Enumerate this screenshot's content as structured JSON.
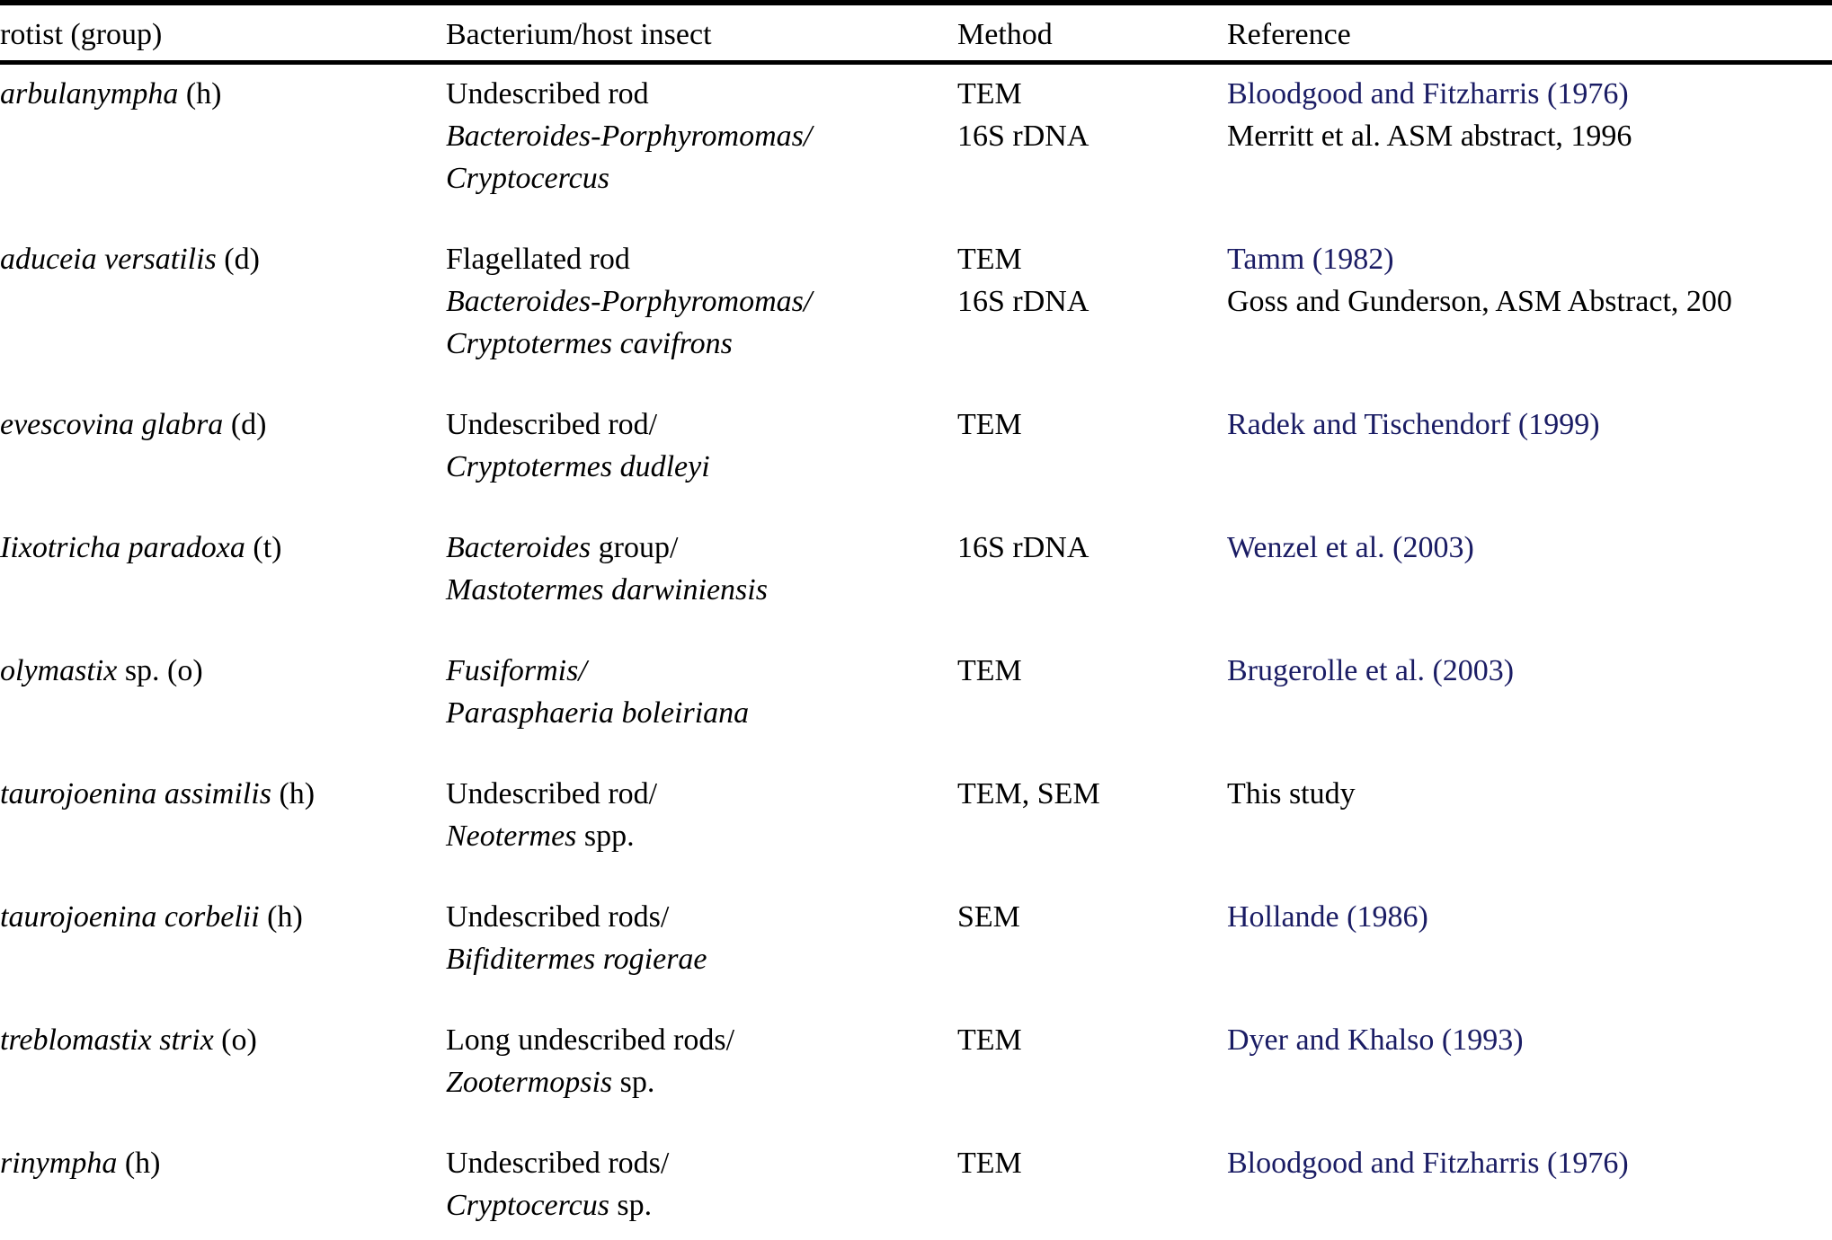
{
  "colors": {
    "background": "#ffffff",
    "text": "#000000",
    "link": "#1a1c64",
    "rule": "#000000"
  },
  "table": {
    "columns": [
      {
        "id": "protist",
        "label": "rotist (group)"
      },
      {
        "id": "bacterium_host",
        "label": "Bacterium/host insect"
      },
      {
        "id": "method",
        "label": "Method"
      },
      {
        "id": "reference",
        "label": "Reference"
      }
    ],
    "rows": [
      {
        "protist": [
          {
            "t": "arbulanympha",
            "i": 1
          },
          {
            "t": " (h)",
            "i": 0
          }
        ],
        "bacterium_host": [
          [
            {
              "t": "Undescribed rod",
              "i": 0
            }
          ],
          [
            {
              "t": "Bacteroides-Porphyromomas/",
              "i": 1
            }
          ],
          [
            {
              "t": "Cryptocercus",
              "i": 1
            }
          ]
        ],
        "method": [
          "TEM",
          "16S rDNA"
        ],
        "reference": [
          {
            "text": "Bloodgood and Fitzharris (1976)",
            "link": 1
          },
          {
            "text": "Merritt et al. ASM abstract, 1996",
            "link": 0
          }
        ]
      },
      {
        "protist": [
          {
            "t": "aduceia versatilis",
            "i": 1
          },
          {
            "t": " (d)",
            "i": 0
          }
        ],
        "bacterium_host": [
          [
            {
              "t": "Flagellated rod",
              "i": 0
            }
          ],
          [
            {
              "t": "Bacteroides-Porphyromomas/",
              "i": 1
            }
          ],
          [
            {
              "t": "Cryptotermes cavifrons",
              "i": 1
            }
          ]
        ],
        "method": [
          "TEM",
          "16S rDNA"
        ],
        "reference": [
          {
            "text": "Tamm (1982)",
            "link": 1
          },
          {
            "text": "Goss and Gunderson, ASM Abstract, 200",
            "link": 0
          }
        ]
      },
      {
        "protist": [
          {
            "t": "evescovina glabra",
            "i": 1
          },
          {
            "t": " (d)",
            "i": 0
          }
        ],
        "bacterium_host": [
          [
            {
              "t": "Undescribed rod/",
              "i": 0
            }
          ],
          [
            {
              "t": "Cryptotermes dudleyi",
              "i": 1
            }
          ]
        ],
        "method": [
          "TEM"
        ],
        "reference": [
          {
            "text": "Radek and Tischendorf (1999)",
            "link": 1
          }
        ]
      },
      {
        "protist": [
          {
            "t": "Iixotricha paradoxa",
            "i": 1
          },
          {
            "t": " (t)",
            "i": 0
          }
        ],
        "bacterium_host": [
          [
            {
              "t": "Bacteroides",
              "i": 1
            },
            {
              "t": " group/",
              "i": 0
            }
          ],
          [
            {
              "t": "Mastotermes darwiniensis",
              "i": 1
            }
          ]
        ],
        "method": [
          "16S rDNA"
        ],
        "reference": [
          {
            "text": "Wenzel et al. (2003)",
            "link": 1
          }
        ]
      },
      {
        "protist": [
          {
            "t": "olymastix",
            "i": 1
          },
          {
            "t": " sp. (o)",
            "i": 0
          }
        ],
        "bacterium_host": [
          [
            {
              "t": "Fusiformis/",
              "i": 1
            }
          ],
          [
            {
              "t": "Parasphaeria boleiriana",
              "i": 1
            }
          ]
        ],
        "method": [
          "TEM"
        ],
        "reference": [
          {
            "text": "Brugerolle et al. (2003)",
            "link": 1
          }
        ]
      },
      {
        "protist": [
          {
            "t": "taurojoenina assimilis",
            "i": 1
          },
          {
            "t": " (h)",
            "i": 0
          }
        ],
        "bacterium_host": [
          [
            {
              "t": "Undescribed rod/",
              "i": 0
            }
          ],
          [
            {
              "t": "Neotermes",
              "i": 1
            },
            {
              "t": " spp.",
              "i": 0
            }
          ]
        ],
        "method": [
          "TEM, SEM"
        ],
        "reference": [
          {
            "text": "This study",
            "link": 0
          }
        ]
      },
      {
        "protist": [
          {
            "t": "taurojoenina corbelii",
            "i": 1
          },
          {
            "t": " (h)",
            "i": 0
          }
        ],
        "bacterium_host": [
          [
            {
              "t": "Undescribed rods/",
              "i": 0
            }
          ],
          [
            {
              "t": "Bifiditermes rogierae",
              "i": 1
            }
          ]
        ],
        "method": [
          "SEM"
        ],
        "reference": [
          {
            "text": "Hollande (1986)",
            "link": 1
          }
        ]
      },
      {
        "protist": [
          {
            "t": "treblomastix strix",
            "i": 1
          },
          {
            "t": " (o)",
            "i": 0
          }
        ],
        "bacterium_host": [
          [
            {
              "t": "Long undescribed rods/",
              "i": 0
            }
          ],
          [
            {
              "t": "Zootermopsis",
              "i": 1
            },
            {
              "t": " sp.",
              "i": 0
            }
          ]
        ],
        "method": [
          "TEM"
        ],
        "reference": [
          {
            "text": "Dyer and Khalso (1993)",
            "link": 1
          }
        ]
      },
      {
        "protist": [
          {
            "t": "rinympha",
            "i": 1
          },
          {
            "t": " (h)",
            "i": 0
          }
        ],
        "bacterium_host": [
          [
            {
              "t": "Undescribed rods/",
              "i": 0
            }
          ],
          [
            {
              "t": "Cryptocercus",
              "i": 1
            },
            {
              "t": " sp.",
              "i": 0
            }
          ]
        ],
        "method": [
          "TEM"
        ],
        "reference": [
          {
            "text": "Bloodgood and Fitzharris (1976)",
            "link": 1
          }
        ]
      }
    ]
  }
}
